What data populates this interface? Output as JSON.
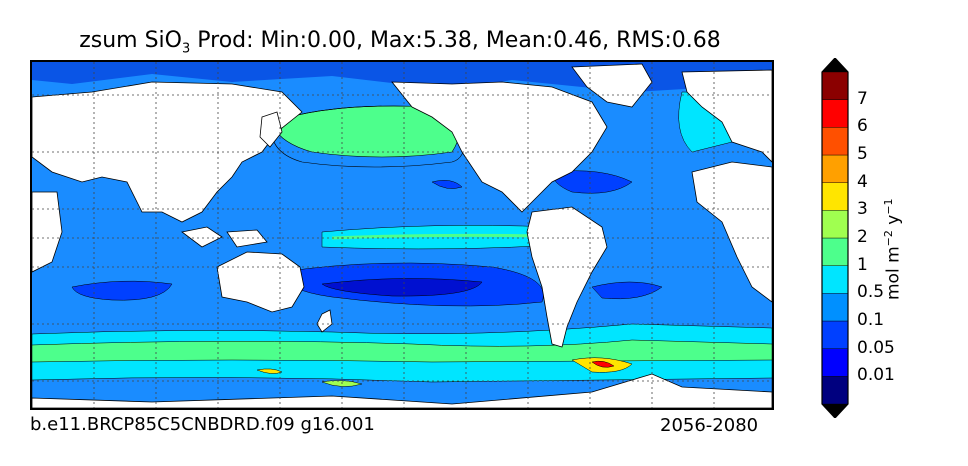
{
  "title": {
    "prefix": "zsum SiO",
    "subscript": "3",
    "rest": " Prod: Min:0.00, Max:5.38, Mean:0.46, RMS:0.68"
  },
  "footer": {
    "case_name": "b.e11.BRCP85C5CNBDRD.f09 g16.001",
    "years": "2056-2080"
  },
  "colorbar": {
    "unit_base": "mol m",
    "unit_exp1": "−2",
    "unit_mid": " y",
    "unit_exp2": "−1",
    "levels": [
      {
        "label": "0.01",
        "color": "#00007f"
      },
      {
        "label": "0.05",
        "color": "#0000ff"
      },
      {
        "label": "0.1",
        "color": "#0040ff"
      },
      {
        "label": "0.5",
        "color": "#0090ff"
      },
      {
        "label": "1",
        "color": "#00e5ff"
      },
      {
        "label": "2",
        "color": "#4dff8c"
      },
      {
        "label": "3",
        "color": "#a0ff50"
      },
      {
        "label": "4",
        "color": "#ffe500"
      },
      {
        "label": "5",
        "color": "#ffa000"
      },
      {
        "label": "6",
        "color": "#ff5000"
      },
      {
        "label": "7",
        "color": "#ff0000"
      }
    ],
    "under_color": "#000000",
    "over_color": "#800000",
    "top_color": "#8b0000"
  },
  "colors": {
    "ocean_base": "#0090ff",
    "land": "#ffffff",
    "grid": "#555555"
  }
}
